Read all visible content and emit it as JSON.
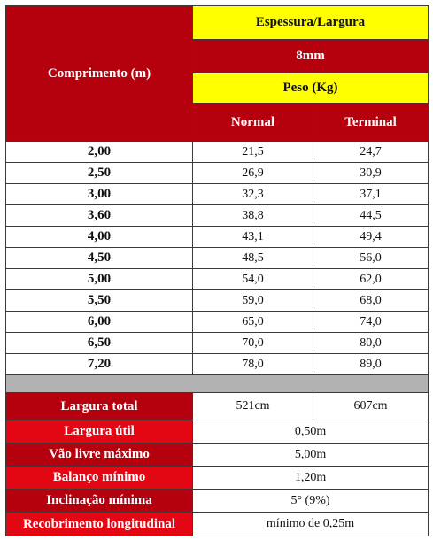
{
  "header": {
    "length_label": "Comprimento (m)",
    "thickness_label": "Espessura/Largura",
    "thickness_value": "8mm",
    "weight_label": "Peso (Kg)",
    "col_normal": "Normal",
    "col_terminal": "Terminal"
  },
  "rows": [
    {
      "length": "2,00",
      "normal": "21,5",
      "terminal": "24,7"
    },
    {
      "length": "2,50",
      "normal": "26,9",
      "terminal": "30,9"
    },
    {
      "length": "3,00",
      "normal": "32,3",
      "terminal": "37,1"
    },
    {
      "length": "3,60",
      "normal": "38,8",
      "terminal": "44,5"
    },
    {
      "length": "4,00",
      "normal": "43,1",
      "terminal": "49,4"
    },
    {
      "length": "4,50",
      "normal": "48,5",
      "terminal": "56,0"
    },
    {
      "length": "5,00",
      "normal": "54,0",
      "terminal": "62,0"
    },
    {
      "length": "5,50",
      "normal": "59,0",
      "terminal": "68,0"
    },
    {
      "length": "6,00",
      "normal": "65,0",
      "terminal": "74,0"
    },
    {
      "length": "6,50",
      "normal": "70,0",
      "terminal": "80,0"
    },
    {
      "length": "7,20",
      "normal": "78,0",
      "terminal": "89,0"
    }
  ],
  "specs": {
    "total_width": {
      "label": "Largura total",
      "normal": "521cm",
      "terminal": "607cm"
    },
    "useful_width": {
      "label": "Largura útil",
      "value": "0,50m"
    },
    "max_span": {
      "label": "Vão livre máximo",
      "value": "5,00m"
    },
    "min_overhang": {
      "label": "Balanço mínimo",
      "value": "1,20m"
    },
    "min_slope": {
      "label": "Inclinação mínima",
      "value": "5° (9%)"
    },
    "longitudinal_overlap": {
      "label": "Recobrimento longitudinal",
      "value": "mínimo de 0,25m"
    }
  },
  "colors": {
    "header_red": "#b5000d",
    "label_bright_red": "#e30613",
    "header_yellow": "#ffff00",
    "separator_gray": "#b2b2b2"
  }
}
